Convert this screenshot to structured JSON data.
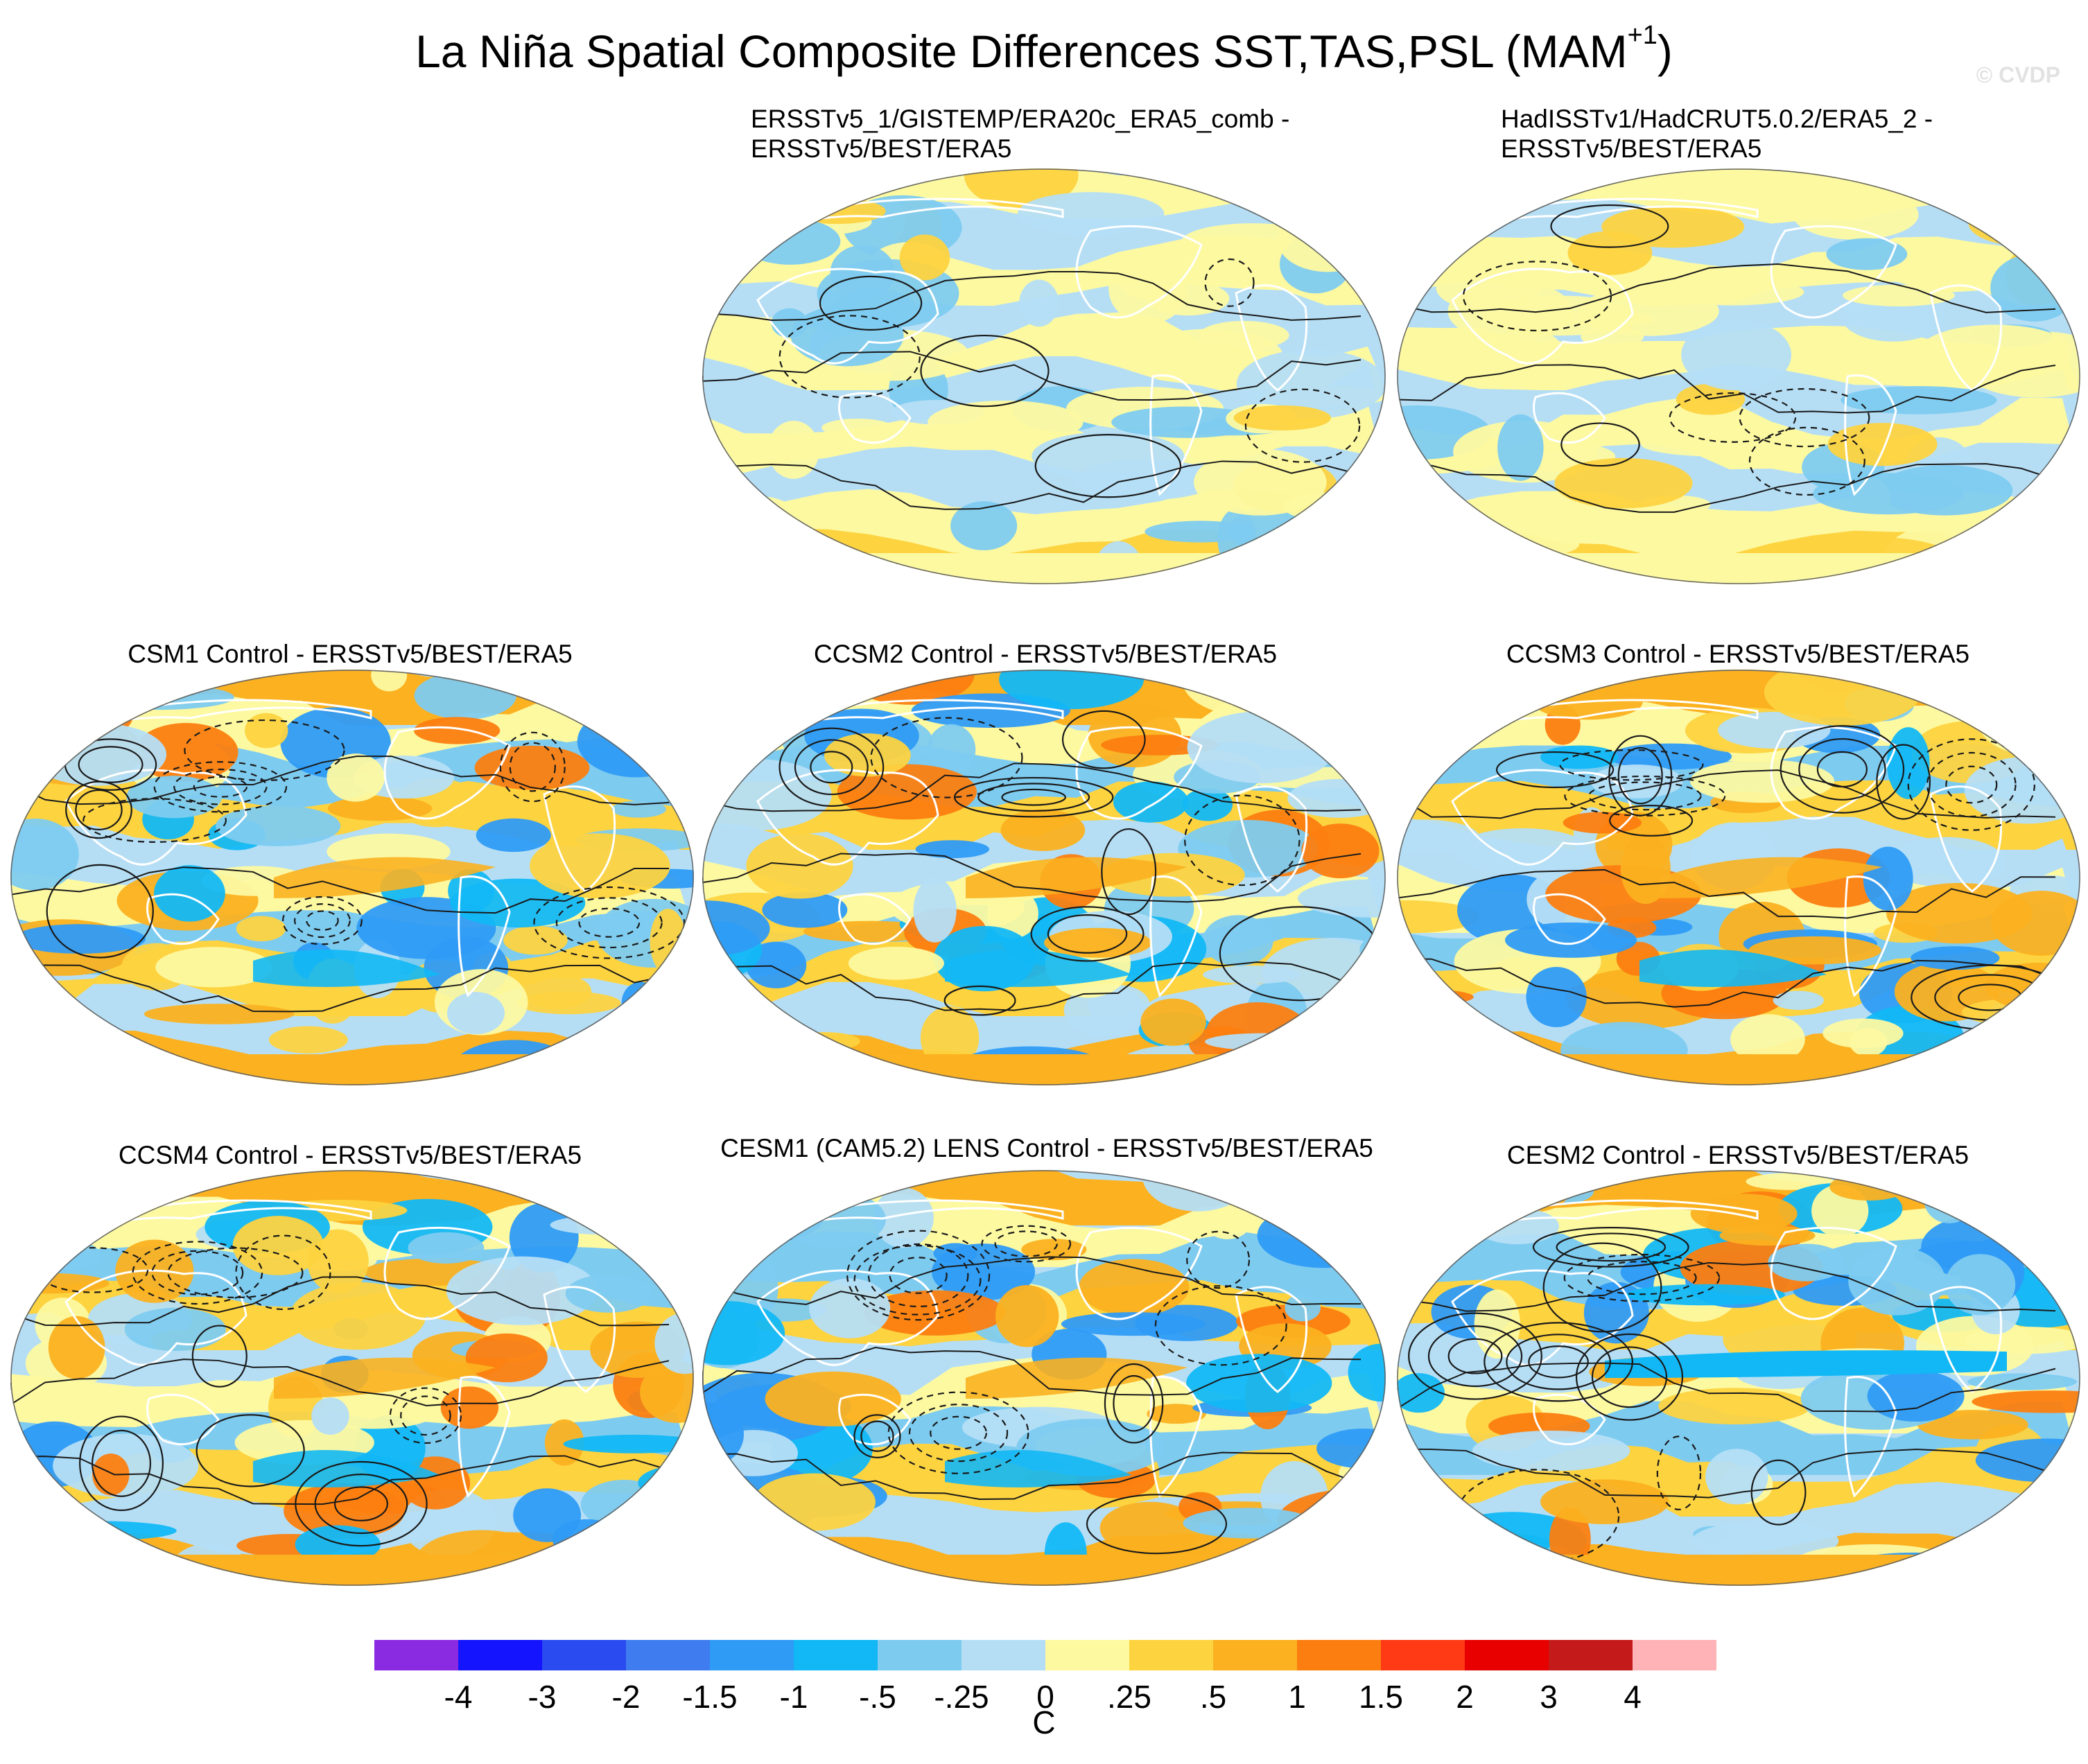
{
  "title": {
    "text": "La Niña Spatial Composite Differences SST,TAS,PSL (MAM",
    "superscript": "+1",
    "suffix": ")"
  },
  "watermark": "© CVDP",
  "chart_data": {
    "type": "heatmap",
    "title": "La Niña Spatial Composite Differences SST,TAS,PSL (MAM+1)",
    "projection": "robinson (global, Pacific-centered)",
    "contours": "PSL difference (solid = positive, dashed = negative)",
    "panels": [
      {
        "position": "row1-col2",
        "title": "ERSSTv5_1/GISTEMP/ERA20c_ERA5_comb -\nERSSTv5/BEST/ERA5",
        "style": "weak"
      },
      {
        "position": "row1-col3",
        "title": "HadISSTv1/HadCRUT5.0.2/ERA5_2 -\nERSSTv5/BEST/ERA5",
        "style": "weak"
      },
      {
        "position": "row2-col1",
        "title": "CSM1 Control - ERSSTv5/BEST/ERA5",
        "style": "strong"
      },
      {
        "position": "row2-col2",
        "title": "CCSM2 Control - ERSSTv5/BEST/ERA5",
        "style": "strong"
      },
      {
        "position": "row2-col3",
        "title": "CCSM3 Control - ERSSTv5/BEST/ERA5",
        "style": "strong"
      },
      {
        "position": "row3-col1",
        "title": "CCSM4 Control - ERSSTv5/BEST/ERA5",
        "style": "strong"
      },
      {
        "position": "row3-col2",
        "title": "CESM1 (CAM5.2) LENS Control - ERSSTv5/BEST/ERA5",
        "style": "strong"
      },
      {
        "position": "row3-col3",
        "title": "CESM2 Control - ERSSTv5/BEST/ERA5",
        "style": "equatorial"
      }
    ],
    "colorbar": {
      "levels": [
        "-4",
        "-3",
        "-2",
        "-1.5",
        "-1",
        "-.5",
        "-.25",
        "0",
        ".25",
        ".5",
        "1",
        "1.5",
        "2",
        "3",
        "4"
      ],
      "colors": [
        "#8a2be2",
        "#1414ff",
        "#2a4bf0",
        "#3e7cf0",
        "#2f9bf5",
        "#12b8f5",
        "#7ecbf0",
        "#b5def5",
        "#fdf9a1",
        "#fdd340",
        "#fbb120",
        "#fc7e10",
        "#ff3a14",
        "#e80000",
        "#c41a1a",
        "#ffb3b6"
      ],
      "unit": "C"
    }
  }
}
